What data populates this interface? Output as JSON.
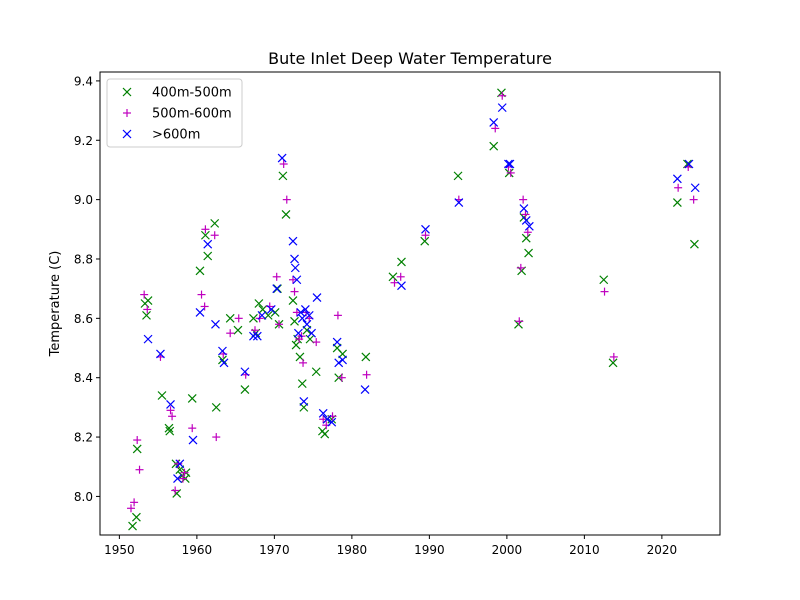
{
  "chart_data": {
    "type": "scatter",
    "title": "Bute Inlet Deep Water Temperature",
    "xlabel": "",
    "ylabel": "Temperature (C)",
    "xlim": [
      1947.5,
      2027.5
    ],
    "ylim": [
      7.87,
      9.43
    ],
    "xticks": [
      1950,
      1960,
      1970,
      1980,
      1990,
      2000,
      2010,
      2020
    ],
    "yticks": [
      8.0,
      8.2,
      8.4,
      8.6,
      8.8,
      9.0,
      9.2,
      9.4
    ],
    "grid": false,
    "legend_position": "top-left",
    "series": [
      {
        "name": "400m-500m",
        "marker": "x",
        "color": "#008000",
        "points": [
          [
            1951.7,
            7.9
          ],
          [
            1952.2,
            7.93
          ],
          [
            1952.3,
            8.16
          ],
          [
            1953.3,
            8.65
          ],
          [
            1953.5,
            8.61
          ],
          [
            1953.7,
            8.66
          ],
          [
            1955.5,
            8.34
          ],
          [
            1956.4,
            8.23
          ],
          [
            1956.5,
            8.22
          ],
          [
            1957.3,
            8.11
          ],
          [
            1957.4,
            8.01
          ],
          [
            1957.8,
            8.09
          ],
          [
            1958.1,
            8.07
          ],
          [
            1958.5,
            8.06
          ],
          [
            1958.6,
            8.08
          ],
          [
            1959.4,
            8.33
          ],
          [
            1960.4,
            8.76
          ],
          [
            1961.1,
            8.88
          ],
          [
            1961.4,
            8.81
          ],
          [
            1962.3,
            8.92
          ],
          [
            1962.5,
            8.3
          ],
          [
            1963.3,
            8.46
          ],
          [
            1964.3,
            8.6
          ],
          [
            1965.3,
            8.56
          ],
          [
            1966.2,
            8.36
          ],
          [
            1967.3,
            8.6
          ],
          [
            1967.6,
            8.55
          ],
          [
            1968.0,
            8.65
          ],
          [
            1968.5,
            8.63
          ],
          [
            1969.2,
            8.61
          ],
          [
            1970.1,
            8.62
          ],
          [
            1970.4,
            8.7
          ],
          [
            1970.6,
            8.58
          ],
          [
            1971.1,
            9.08
          ],
          [
            1971.5,
            8.95
          ],
          [
            1972.4,
            8.66
          ],
          [
            1972.6,
            8.59
          ],
          [
            1972.8,
            8.51
          ],
          [
            1973.0,
            8.53
          ],
          [
            1973.3,
            8.47
          ],
          [
            1973.6,
            8.38
          ],
          [
            1973.8,
            8.3
          ],
          [
            1974.2,
            8.56
          ],
          [
            1974.6,
            8.53
          ],
          [
            1975.4,
            8.42
          ],
          [
            1976.2,
            8.22
          ],
          [
            1976.5,
            8.21
          ],
          [
            1976.8,
            8.26
          ],
          [
            1977.4,
            8.26
          ],
          [
            1978.1,
            8.5
          ],
          [
            1978.3,
            8.4
          ],
          [
            1978.8,
            8.48
          ],
          [
            1981.8,
            8.47
          ],
          [
            1985.3,
            8.74
          ],
          [
            1986.4,
            8.79
          ],
          [
            1989.4,
            8.86
          ],
          [
            1993.7,
            9.08
          ],
          [
            1998.3,
            9.18
          ],
          [
            1999.3,
            9.36
          ],
          [
            2000.3,
            9.09
          ],
          [
            2001.5,
            8.58
          ],
          [
            2001.9,
            8.76
          ],
          [
            2002.2,
            8.94
          ],
          [
            2002.5,
            8.87
          ],
          [
            2002.8,
            8.82
          ],
          [
            2012.5,
            8.73
          ],
          [
            2013.7,
            8.45
          ],
          [
            2022.0,
            8.99
          ],
          [
            2023.3,
            9.12
          ],
          [
            2024.2,
            8.85
          ]
        ]
      },
      {
        "name": "500m-600m",
        "marker": "+",
        "color": "#bf00bf",
        "points": [
          [
            1951.5,
            7.96
          ],
          [
            1951.9,
            7.98
          ],
          [
            1952.3,
            8.19
          ],
          [
            1952.6,
            8.09
          ],
          [
            1953.2,
            8.68
          ],
          [
            1953.6,
            8.63
          ],
          [
            1955.3,
            8.47
          ],
          [
            1956.6,
            8.29
          ],
          [
            1956.8,
            8.27
          ],
          [
            1957.2,
            8.02
          ],
          [
            1957.6,
            8.11
          ],
          [
            1958.2,
            8.06
          ],
          [
            1958.4,
            8.08
          ],
          [
            1959.4,
            8.23
          ],
          [
            1960.6,
            8.68
          ],
          [
            1961.0,
            8.64
          ],
          [
            1961.1,
            8.9
          ],
          [
            1962.3,
            8.88
          ],
          [
            1962.5,
            8.2
          ],
          [
            1963.4,
            8.48
          ],
          [
            1964.3,
            8.55
          ],
          [
            1965.4,
            8.6
          ],
          [
            1966.3,
            8.41
          ],
          [
            1967.5,
            8.56
          ],
          [
            1968.1,
            8.6
          ],
          [
            1969.4,
            8.64
          ],
          [
            1970.3,
            8.74
          ],
          [
            1970.6,
            8.58
          ],
          [
            1971.2,
            9.12
          ],
          [
            1971.6,
            9.0
          ],
          [
            1972.4,
            8.73
          ],
          [
            1972.6,
            8.69
          ],
          [
            1972.9,
            8.62
          ],
          [
            1973.2,
            8.53
          ],
          [
            1973.5,
            8.54
          ],
          [
            1973.7,
            8.45
          ],
          [
            1974.1,
            8.62
          ],
          [
            1974.5,
            8.6
          ],
          [
            1975.4,
            8.52
          ],
          [
            1976.3,
            8.26
          ],
          [
            1976.7,
            8.24
          ],
          [
            1977.5,
            8.27
          ],
          [
            1978.2,
            8.61
          ],
          [
            1978.7,
            8.4
          ],
          [
            1981.9,
            8.41
          ],
          [
            1985.5,
            8.72
          ],
          [
            1986.3,
            8.74
          ],
          [
            1989.5,
            8.88
          ],
          [
            1993.8,
            9.0
          ],
          [
            1998.5,
            9.24
          ],
          [
            1999.4,
            9.35
          ],
          [
            2000.2,
            9.11
          ],
          [
            2000.5,
            9.09
          ],
          [
            2001.6,
            8.59
          ],
          [
            2001.8,
            8.77
          ],
          [
            2002.1,
            9.0
          ],
          [
            2002.4,
            8.95
          ],
          [
            2002.7,
            8.89
          ],
          [
            2012.6,
            8.69
          ],
          [
            2013.8,
            8.47
          ],
          [
            2022.1,
            9.04
          ],
          [
            2023.4,
            9.11
          ],
          [
            2024.1,
            9.0
          ]
        ]
      },
      {
        "name": ">600m",
        "marker": "x",
        "color": "#0000ff",
        "points": [
          [
            1953.7,
            8.53
          ],
          [
            1955.3,
            8.48
          ],
          [
            1956.6,
            8.31
          ],
          [
            1957.5,
            8.06
          ],
          [
            1957.8,
            8.11
          ],
          [
            1959.5,
            8.19
          ],
          [
            1960.4,
            8.62
          ],
          [
            1961.4,
            8.85
          ],
          [
            1962.4,
            8.58
          ],
          [
            1963.3,
            8.49
          ],
          [
            1963.5,
            8.45
          ],
          [
            1966.2,
            8.42
          ],
          [
            1967.3,
            8.54
          ],
          [
            1967.8,
            8.54
          ],
          [
            1968.4,
            8.61
          ],
          [
            1969.6,
            8.63
          ],
          [
            1970.3,
            8.7
          ],
          [
            1971.0,
            9.14
          ],
          [
            1972.4,
            8.86
          ],
          [
            1972.6,
            8.8
          ],
          [
            1972.7,
            8.77
          ],
          [
            1972.9,
            8.73
          ],
          [
            1973.1,
            8.55
          ],
          [
            1973.4,
            8.62
          ],
          [
            1973.6,
            8.6
          ],
          [
            1973.8,
            8.32
          ],
          [
            1974.0,
            8.63
          ],
          [
            1974.2,
            8.58
          ],
          [
            1974.5,
            8.61
          ],
          [
            1974.8,
            8.55
          ],
          [
            1975.5,
            8.67
          ],
          [
            1976.3,
            8.28
          ],
          [
            1976.8,
            8.26
          ],
          [
            1977.4,
            8.25
          ],
          [
            1978.1,
            8.52
          ],
          [
            1978.3,
            8.45
          ],
          [
            1978.8,
            8.46
          ],
          [
            1981.7,
            8.36
          ],
          [
            1986.4,
            8.71
          ],
          [
            1989.5,
            8.9
          ],
          [
            1993.8,
            8.99
          ],
          [
            1998.3,
            9.26
          ],
          [
            1999.4,
            9.31
          ],
          [
            2000.2,
            9.12
          ],
          [
            2000.4,
            9.12
          ],
          [
            2002.2,
            8.97
          ],
          [
            2002.5,
            8.93
          ],
          [
            2002.9,
            8.91
          ],
          [
            2022.0,
            9.07
          ],
          [
            2023.5,
            9.12
          ],
          [
            2024.3,
            9.04
          ]
        ]
      }
    ]
  }
}
